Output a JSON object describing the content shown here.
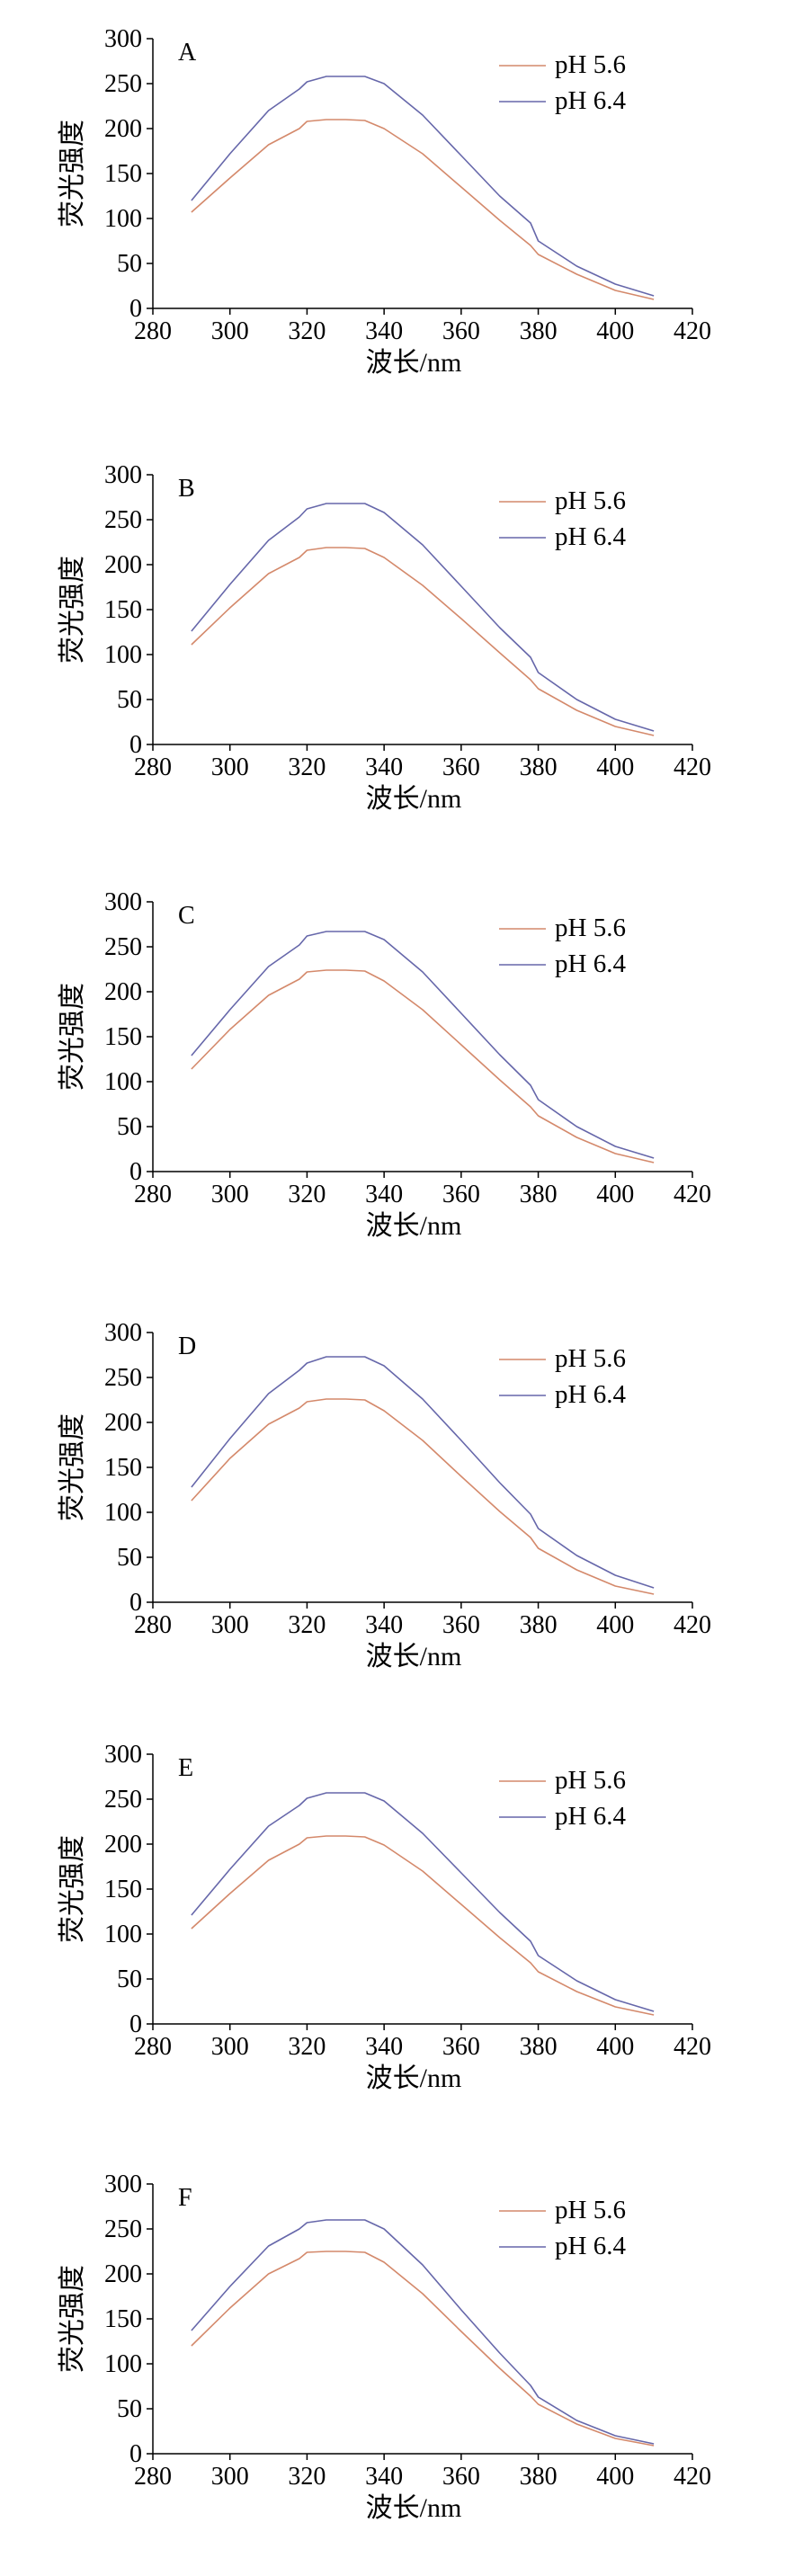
{
  "chart_data": [
    {
      "type": "line",
      "panel_label": "A",
      "xlabel": "波长/nm",
      "ylabel": "荧光强度",
      "xlim": [
        280,
        420
      ],
      "ylim": [
        0,
        300
      ],
      "xticks": [
        "280",
        "300",
        "320",
        "340",
        "360",
        "380",
        "400",
        "420"
      ],
      "yticks": [
        "0",
        "50",
        "100",
        "150",
        "200",
        "250",
        "300"
      ],
      "legend_position": "top-right",
      "series": [
        {
          "name": "pH 5.6",
          "color": "#d4896b",
          "x": [
            290,
            300,
            310,
            318,
            320,
            325,
            330,
            335,
            340,
            350,
            360,
            370,
            378,
            380,
            390,
            400,
            410
          ],
          "y": [
            107,
            145,
            182,
            200,
            208,
            210,
            210,
            209,
            200,
            172,
            135,
            98,
            70,
            60,
            38,
            20,
            10
          ]
        },
        {
          "name": "pH 6.4",
          "color": "#6667aa",
          "x": [
            290,
            300,
            310,
            318,
            320,
            325,
            330,
            335,
            340,
            350,
            360,
            370,
            378,
            380,
            390,
            400,
            410
          ],
          "y": [
            120,
            172,
            220,
            244,
            252,
            258,
            258,
            258,
            250,
            215,
            170,
            125,
            95,
            75,
            47,
            27,
            14
          ]
        }
      ]
    },
    {
      "type": "line",
      "panel_label": "B",
      "xlabel": "波长/nm",
      "ylabel": "荧光强度",
      "xlim": [
        280,
        420
      ],
      "ylim": [
        0,
        300
      ],
      "xticks": [
        "280",
        "300",
        "320",
        "340",
        "360",
        "380",
        "400",
        "420"
      ],
      "yticks": [
        "0",
        "50",
        "100",
        "150",
        "200",
        "250",
        "300"
      ],
      "legend_position": "top-right",
      "series": [
        {
          "name": "pH 5.6",
          "color": "#d4896b",
          "x": [
            290,
            300,
            310,
            318,
            320,
            325,
            330,
            335,
            340,
            350,
            360,
            370,
            378,
            380,
            390,
            400,
            410
          ],
          "y": [
            111,
            152,
            190,
            208,
            216,
            219,
            219,
            218,
            208,
            177,
            140,
            102,
            72,
            62,
            38,
            20,
            10
          ]
        },
        {
          "name": "pH 6.4",
          "color": "#6667aa",
          "x": [
            290,
            300,
            310,
            318,
            320,
            325,
            330,
            335,
            340,
            350,
            360,
            370,
            378,
            380,
            390,
            400,
            410
          ],
          "y": [
            126,
            178,
            227,
            253,
            262,
            268,
            268,
            268,
            258,
            222,
            176,
            130,
            97,
            80,
            50,
            28,
            15
          ]
        }
      ]
    },
    {
      "type": "line",
      "panel_label": "C",
      "xlabel": "波长/nm",
      "ylabel": "荧光强度",
      "xlim": [
        280,
        420
      ],
      "ylim": [
        0,
        300
      ],
      "xticks": [
        "280",
        "300",
        "320",
        "340",
        "360",
        "380",
        "400",
        "420"
      ],
      "yticks": [
        "0",
        "50",
        "100",
        "150",
        "200",
        "250",
        "300"
      ],
      "legend_position": "top-right",
      "series": [
        {
          "name": "pH 5.6",
          "color": "#d4896b",
          "x": [
            290,
            300,
            310,
            318,
            320,
            325,
            330,
            335,
            340,
            350,
            360,
            370,
            378,
            380,
            390,
            400,
            410
          ],
          "y": [
            114,
            158,
            196,
            214,
            222,
            224,
            224,
            223,
            212,
            180,
            141,
            102,
            72,
            62,
            38,
            20,
            10
          ]
        },
        {
          "name": "pH 6.4",
          "color": "#6667aa",
          "x": [
            290,
            300,
            310,
            318,
            320,
            325,
            330,
            335,
            340,
            350,
            360,
            370,
            378,
            380,
            390,
            400,
            410
          ],
          "y": [
            129,
            180,
            228,
            252,
            262,
            267,
            267,
            267,
            258,
            222,
            176,
            130,
            96,
            80,
            50,
            28,
            15
          ]
        }
      ]
    },
    {
      "type": "line",
      "panel_label": "D",
      "xlabel": "波长/nm",
      "ylabel": "荧光强度",
      "xlim": [
        280,
        420
      ],
      "ylim": [
        0,
        300
      ],
      "xticks": [
        "280",
        "300",
        "320",
        "340",
        "360",
        "380",
        "400",
        "420"
      ],
      "yticks": [
        "0",
        "50",
        "100",
        "150",
        "200",
        "250",
        "300"
      ],
      "legend_position": "top-right",
      "series": [
        {
          "name": "pH 5.6",
          "color": "#d4896b",
          "x": [
            290,
            300,
            310,
            318,
            320,
            325,
            330,
            335,
            340,
            350,
            360,
            370,
            378,
            380,
            390,
            400,
            410
          ],
          "y": [
            113,
            160,
            198,
            216,
            223,
            226,
            226,
            225,
            213,
            180,
            140,
            101,
            72,
            60,
            36,
            18,
            9
          ]
        },
        {
          "name": "pH 6.4",
          "color": "#6667aa",
          "x": [
            290,
            300,
            310,
            318,
            320,
            325,
            330,
            335,
            340,
            350,
            360,
            370,
            378,
            380,
            390,
            400,
            410
          ],
          "y": [
            128,
            182,
            232,
            258,
            266,
            273,
            273,
            273,
            263,
            226,
            180,
            133,
            98,
            82,
            52,
            30,
            16
          ]
        }
      ]
    },
    {
      "type": "line",
      "panel_label": "E",
      "xlabel": "波长/nm",
      "ylabel": "荧光强度",
      "xlim": [
        280,
        420
      ],
      "ylim": [
        0,
        300
      ],
      "xticks": [
        "280",
        "300",
        "320",
        "340",
        "360",
        "380",
        "400",
        "420"
      ],
      "yticks": [
        "0",
        "50",
        "100",
        "150",
        "200",
        "250",
        "300"
      ],
      "legend_position": "top-right",
      "series": [
        {
          "name": "pH 5.6",
          "color": "#d4896b",
          "x": [
            290,
            300,
            310,
            318,
            320,
            325,
            330,
            335,
            340,
            350,
            360,
            370,
            378,
            380,
            390,
            400,
            410
          ],
          "y": [
            106,
            145,
            182,
            200,
            207,
            209,
            209,
            208,
            199,
            170,
            133,
            96,
            68,
            58,
            36,
            19,
            10
          ]
        },
        {
          "name": "pH 6.4",
          "color": "#6667aa",
          "x": [
            290,
            300,
            310,
            318,
            320,
            325,
            330,
            335,
            340,
            350,
            360,
            370,
            378,
            380,
            390,
            400,
            410
          ],
          "y": [
            121,
            172,
            220,
            243,
            251,
            257,
            257,
            257,
            248,
            212,
            168,
            124,
            92,
            76,
            48,
            27,
            14
          ]
        }
      ]
    },
    {
      "type": "line",
      "panel_label": "F",
      "xlabel": "波长/nm",
      "ylabel": "荧光强度",
      "xlim": [
        280,
        420
      ],
      "ylim": [
        0,
        300
      ],
      "xticks": [
        "280",
        "300",
        "320",
        "340",
        "360",
        "380",
        "400",
        "420"
      ],
      "yticks": [
        "0",
        "50",
        "100",
        "150",
        "200",
        "250",
        "300"
      ],
      "legend_position": "top-right",
      "series": [
        {
          "name": "pH 5.6",
          "color": "#d4896b",
          "x": [
            290,
            300,
            310,
            318,
            320,
            325,
            330,
            335,
            340,
            350,
            360,
            370,
            378,
            380,
            390,
            400,
            410
          ],
          "y": [
            120,
            162,
            200,
            217,
            224,
            225,
            225,
            224,
            213,
            178,
            136,
            95,
            64,
            55,
            33,
            17,
            9
          ]
        },
        {
          "name": "pH 6.4",
          "color": "#6667aa",
          "x": [
            290,
            300,
            310,
            318,
            320,
            325,
            330,
            335,
            340,
            350,
            360,
            370,
            378,
            380,
            390,
            400,
            410
          ],
          "y": [
            137,
            186,
            231,
            250,
            257,
            260,
            260,
            260,
            250,
            210,
            160,
            112,
            76,
            63,
            37,
            20,
            11
          ]
        }
      ]
    }
  ]
}
